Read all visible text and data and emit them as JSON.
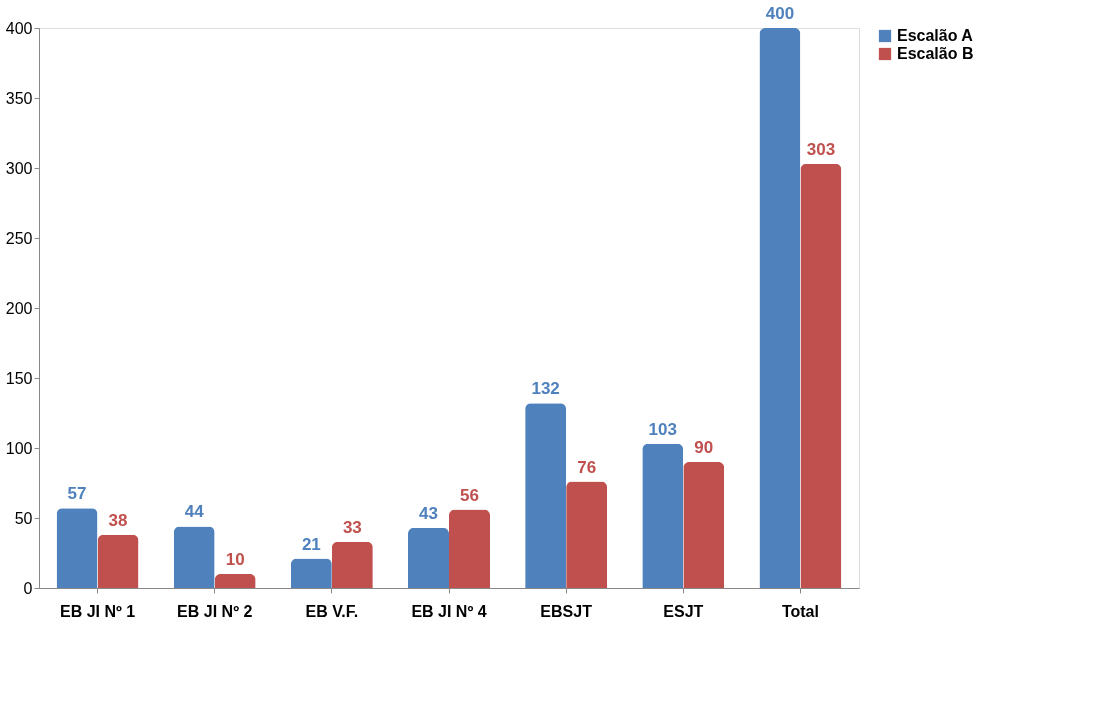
{
  "chart_data": {
    "type": "bar",
    "categories": [
      "EB JI Nº 1",
      "EB JI Nº 2",
      "EB V.F.",
      "EB JI Nº 4",
      "EBSJT",
      "ESJT",
      "Total"
    ],
    "series": [
      {
        "name": "Escalão A",
        "color": "#4f81bd",
        "values": [
          57,
          44,
          21,
          43,
          132,
          103,
          400
        ]
      },
      {
        "name": "Escalão B",
        "color": "#c0504d",
        "values": [
          38,
          10,
          33,
          56,
          76,
          90,
          303
        ]
      }
    ],
    "ylim": [
      0,
      400
    ],
    "yticks": [
      0,
      50,
      100,
      150,
      200,
      250,
      300,
      350,
      400
    ],
    "grid": false,
    "legend": "right",
    "data_labels": true
  }
}
